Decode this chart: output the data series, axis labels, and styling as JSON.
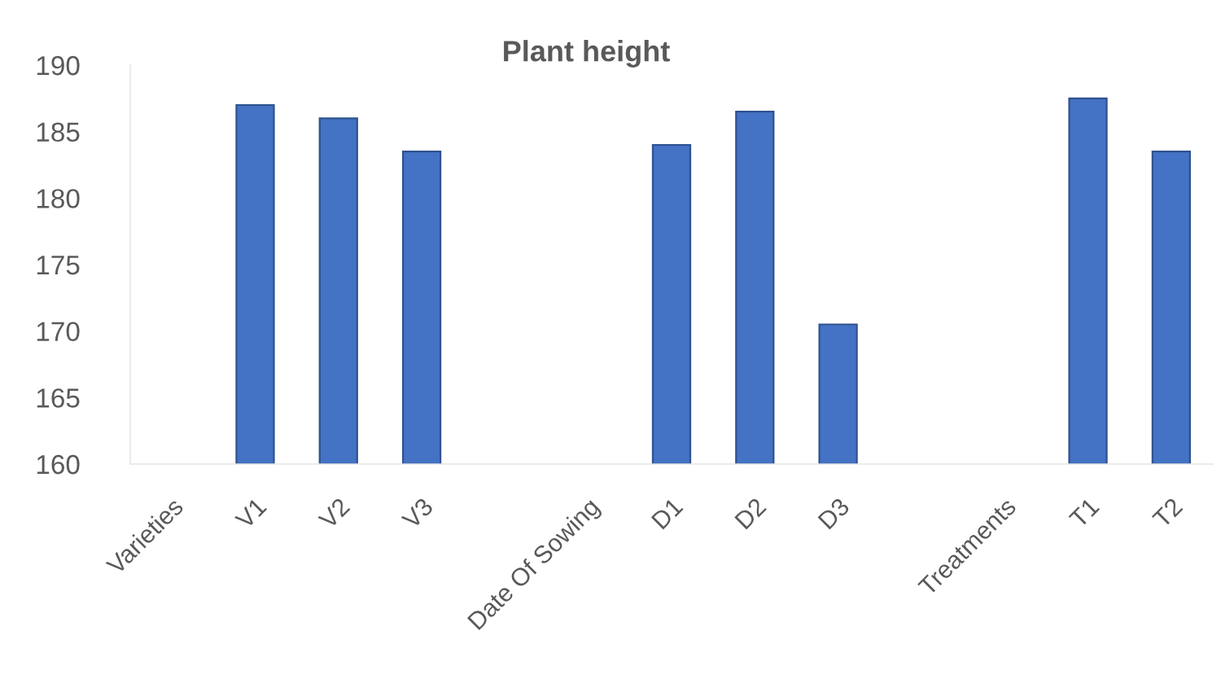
{
  "chart_data": {
    "type": "bar",
    "title": "Plant height",
    "categories": [
      "Varieties",
      "V1",
      "V2",
      "V3",
      null,
      "Date Of Sowing",
      "D1",
      "D2",
      "D3",
      null,
      "Treatments",
      "T1",
      "T2"
    ],
    "values": [
      null,
      187,
      186,
      183.5,
      null,
      null,
      184,
      186.5,
      170.5,
      null,
      null,
      187.5,
      183.5
    ],
    "color": "#4472c4",
    "ylim": [
      160,
      190
    ],
    "yticks": [
      160,
      165,
      170,
      175,
      180,
      185,
      190
    ]
  }
}
